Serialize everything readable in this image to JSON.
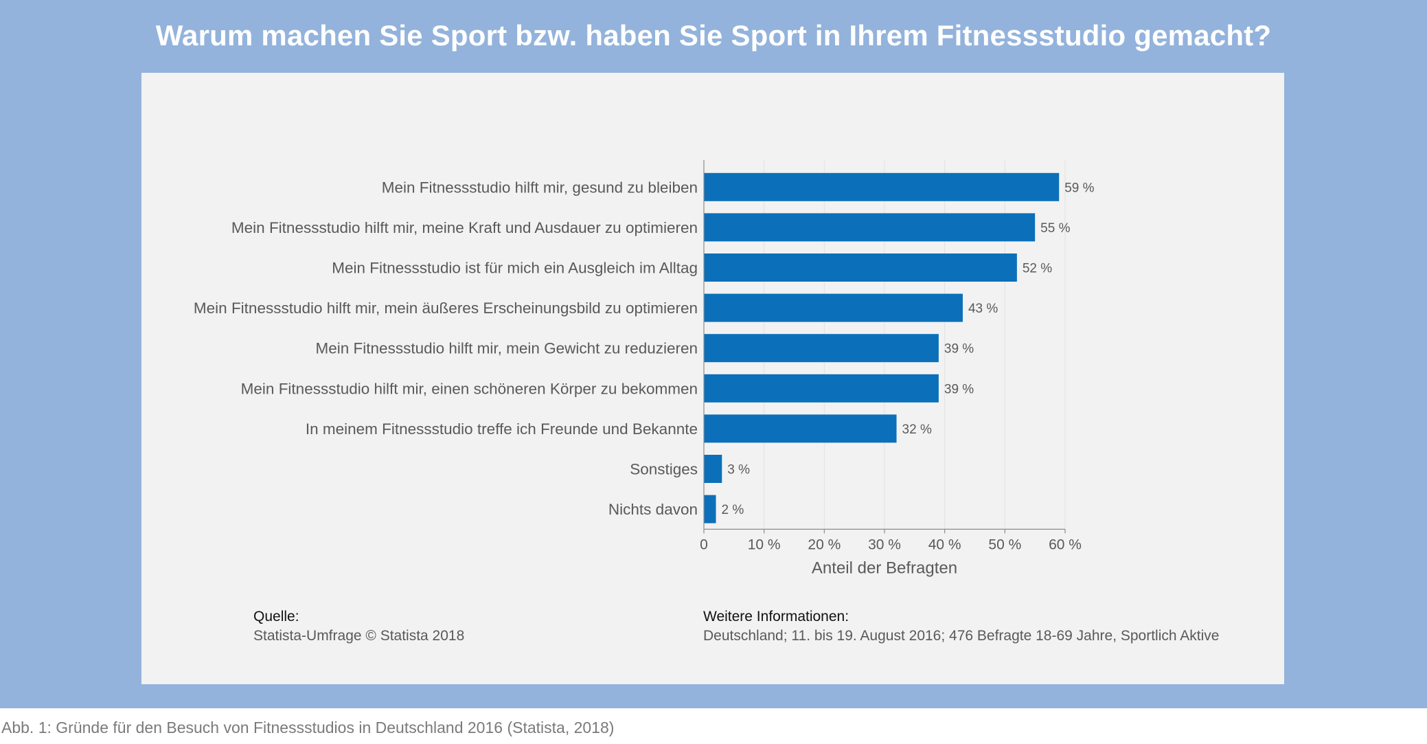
{
  "title": "Warum machen Sie Sport bzw. haben Sie Sport in Ihrem Fitnessstudio gemacht?",
  "chart_data": {
    "type": "bar",
    "orientation": "horizontal",
    "title": "Warum machen Sie Sport bzw. haben Sie Sport in Ihrem Fitnessstudio gemacht?",
    "categories": [
      "Mein Fitnessstudio hilft mir, gesund zu bleiben",
      "Mein Fitnessstudio hilft mir, meine Kraft und Ausdauer zu optimieren",
      "Mein Fitnessstudio ist für mich ein Ausgleich im Alltag",
      "Mein Fitnessstudio hilft mir, mein äußeres Erscheinungsbild zu optimieren",
      "Mein Fitnessstudio hilft mir, mein Gewicht zu reduzieren",
      "Mein Fitnessstudio hilft mir, einen schöneren Körper zu bekommen",
      "In meinem Fitnessstudio treffe ich Freunde und Bekannte",
      "Sonstiges",
      "Nichts davon"
    ],
    "values": [
      59,
      55,
      52,
      43,
      39,
      39,
      32,
      3,
      2
    ],
    "value_labels": [
      "59 %",
      "55 %",
      "52 %",
      "43 %",
      "39 %",
      "39 %",
      "32 %",
      "3 %",
      "2 %"
    ],
    "xlabel": "Anteil der Befragten",
    "ylabel": "",
    "xlim": [
      0,
      60
    ],
    "ticks": [
      0,
      10,
      20,
      30,
      40,
      50,
      60
    ],
    "tick_labels": [
      "0",
      "10 %",
      "20 %",
      "30 %",
      "40 %",
      "50 %",
      "60 %"
    ],
    "grid": true,
    "bar_color": "#0b70b9"
  },
  "source": {
    "heading": "Quelle:",
    "text": "Statista-Umfrage © Statista 2018"
  },
  "info": {
    "heading": "Weitere Informationen:",
    "text": "Deutschland; 11. bis 19. August 2016; 476 Befragte 18-69 Jahre, Sportlich Aktive"
  },
  "caption": "Abb. 1: Gründe für den Besuch von Fitnessstudios in Deutschland 2016 (Statista, 2018)",
  "colors": {
    "frame": "#93b3dc",
    "panel": "#f2f2f2",
    "bar": "#0b70b9",
    "text": "#595959"
  }
}
